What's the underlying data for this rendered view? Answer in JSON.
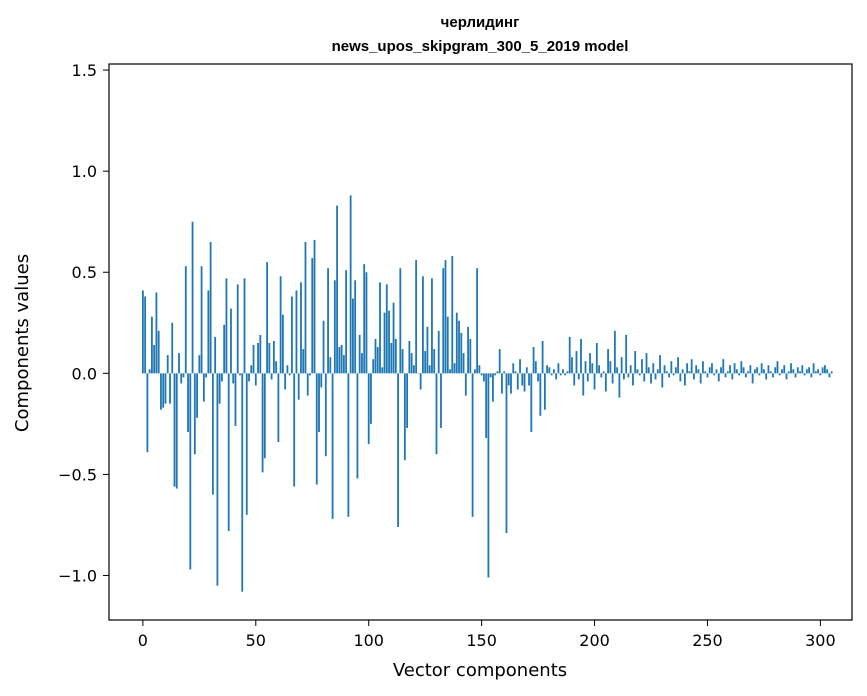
{
  "chart_data": {
    "type": "bar",
    "title": "черлидинг",
    "subtitle": "news_upos_skipgram_300_5_2019 model",
    "xlabel": "Vector components",
    "ylabel": "Components values",
    "xlim": [
      -15,
      314
    ],
    "ylim": [
      -1.22,
      1.53
    ],
    "xticks": [
      0,
      50,
      100,
      150,
      200,
      250,
      300
    ],
    "yticks": [
      -1.0,
      -0.5,
      0.0,
      0.5,
      1.0,
      1.5
    ],
    "xtick_labels": [
      "0",
      "50",
      "100",
      "150",
      "200",
      "250",
      "300"
    ],
    "ytick_labels": [
      "−1.0",
      "−0.5",
      "0.0",
      "0.5",
      "1.0",
      "1.5"
    ],
    "grid": false,
    "series": [
      {
        "color": "#1f77b4",
        "values": [
          0.41,
          0.38,
          -0.39,
          0.02,
          0.28,
          0.14,
          0.4,
          0.21,
          -0.18,
          -0.17,
          -0.15,
          0.09,
          -0.15,
          0.25,
          -0.56,
          -0.57,
          0.1,
          -0.05,
          -0.02,
          0.53,
          -0.29,
          -0.97,
          0.75,
          -0.4,
          -0.22,
          0.09,
          0.53,
          -0.14,
          -0.02,
          0.41,
          0.65,
          -0.6,
          0.18,
          -1.05,
          -0.15,
          -0.04,
          0.24,
          0.47,
          -0.78,
          0.32,
          -0.05,
          -0.26,
          0.44,
          -0.01,
          -1.08,
          0.47,
          -0.7,
          -0.04,
          0.04,
          0.14,
          -0.06,
          0.15,
          0.19,
          -0.49,
          -0.42,
          0.55,
          0.15,
          -0.03,
          0.16,
          0.06,
          -0.34,
          0.48,
          0.29,
          -0.08,
          0.04,
          -0.01,
          0.38,
          -0.56,
          0.41,
          -0.13,
          0.45,
          0.12,
          0.65,
          -0.11,
          -0.01,
          0.57,
          0.66,
          -0.55,
          -0.29,
          -0.07,
          0.26,
          -0.41,
          0.52,
          0.08,
          -0.72,
          0.46,
          0.83,
          0.13,
          0.14,
          0.09,
          0.51,
          -0.71,
          0.88,
          0.37,
          0.46,
          -0.52,
          0.19,
          0.1,
          0.54,
          0.5,
          -0.35,
          -0.25,
          0.07,
          0.17,
          0.13,
          0.45,
          0.03,
          0.3,
          0.44,
          0.31,
          0.15,
          0.35,
          0.17,
          -0.76,
          0.52,
          0.12,
          -0.43,
          -0.27,
          0.16,
          0.1,
          0.04,
          0.56,
          0.0,
          -0.08,
          0.48,
          0.11,
          0.23,
          0.04,
          0.47,
          0.12,
          -0.4,
          0.21,
          -0.27,
          0.52,
          0.56,
          0.28,
          0.02,
          0.58,
          0.05,
          0.3,
          0.26,
          0.2,
          0.1,
          -0.11,
          0.23,
          0.17,
          -0.71,
          0.02,
          0.52,
          0.04,
          -0.01,
          -0.04,
          -0.32,
          -1.01,
          -0.02,
          -0.14,
          -0.01,
          0.01,
          0.12,
          -0.1,
          0.01,
          -0.79,
          -0.06,
          -0.1,
          0.05,
          0.01,
          -0.08,
          0.07,
          -0.06,
          -0.09,
          0.03,
          -0.06,
          -0.29,
          0.13,
          0.06,
          -0.04,
          -0.21,
          0.16,
          -0.18,
          0.04,
          0.03,
          -0.01,
          0.02,
          -0.03,
          0.05,
          -0.01,
          0.02,
          -0.01,
          0.01,
          0.18,
          0.08,
          -0.06,
          0.11,
          -0.03,
          0.17,
          -0.11,
          0.06,
          -0.04,
          0.1,
          0.05,
          -0.08,
          0.15,
          0.04,
          -0.02,
          0.01,
          -0.09,
          0.12,
          0.06,
          -0.05,
          0.21,
          0.03,
          -0.12,
          0.08,
          -0.03,
          0.19,
          -0.02,
          0.04,
          -0.06,
          0.11,
          0.02,
          -0.01,
          0.07,
          -0.04,
          0.1,
          0.03,
          -0.05,
          0.05,
          -0.03,
          0.02,
          0.09,
          -0.07,
          0.04,
          0.01,
          -0.02,
          0.06,
          -0.01,
          0.03,
          0.08,
          -0.04,
          0.02,
          -0.06,
          0.05,
          0.01,
          0.07,
          -0.03,
          0.04,
          0.02,
          -0.05,
          0.06,
          0.01,
          -0.02,
          0.03,
          0.05,
          -0.01,
          0.02,
          -0.04,
          0.03,
          0.07,
          -0.02,
          0.01,
          0.04,
          -0.03,
          0.05,
          0.02,
          -0.01,
          0.06,
          0.03,
          -0.02,
          0.01,
          0.04,
          -0.05,
          0.02,
          0.03,
          -0.01,
          0.05,
          0.02,
          -0.03,
          0.04,
          0.01,
          -0.02,
          0.03,
          0.06,
          -0.01,
          0.02,
          0.04,
          -0.03,
          0.01,
          0.05,
          0.02,
          -0.02,
          0.03,
          0.01,
          0.04,
          -0.01,
          0.02,
          0.03,
          -0.02,
          0.05,
          0.01,
          0.02,
          -0.01,
          0.03,
          0.04,
          0.02,
          -0.02,
          0.01
        ]
      }
    ]
  }
}
